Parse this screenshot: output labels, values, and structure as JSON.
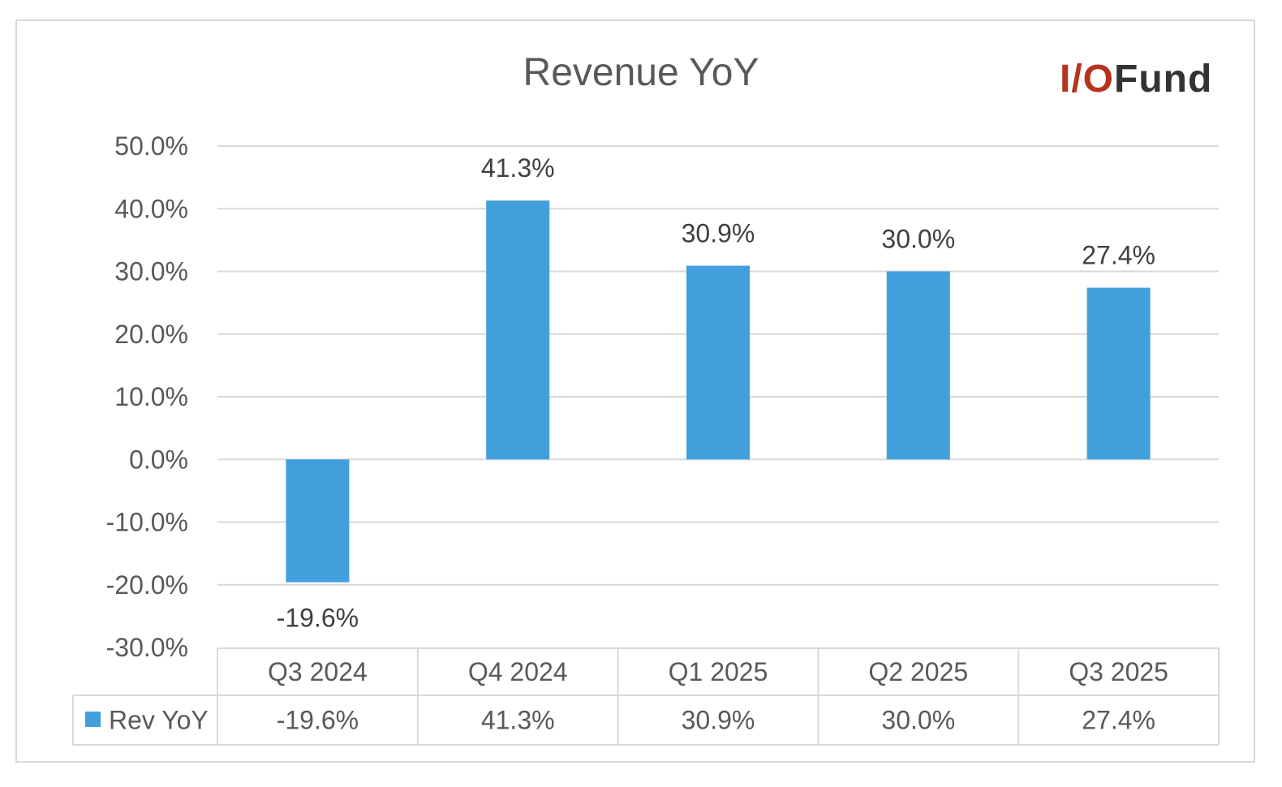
{
  "chart_data": {
    "type": "bar",
    "title": "Revenue YoY",
    "categories": [
      "Q3 2024",
      "Q4 2024",
      "Q1 2025",
      "Q2 2025",
      "Q3 2025"
    ],
    "series": [
      {
        "name": "Rev YoY",
        "values": [
          -19.6,
          41.3,
          30.9,
          30.0,
          27.4
        ],
        "color": "#419fdc"
      }
    ],
    "data_labels": [
      "-19.6%",
      "41.3%",
      "30.9%",
      "30.0%",
      "27.4%"
    ],
    "y_ticks": [
      "50.0%",
      "40.0%",
      "30.0%",
      "20.0%",
      "10.0%",
      "0.0%",
      "-10.0%",
      "-20.0%",
      "-30.0%"
    ],
    "ylim": [
      -30,
      50
    ],
    "grid": true,
    "data_table": true
  },
  "logo": {
    "part1": "I/O",
    "part2": "Fund",
    "color1": "#b5341b",
    "color2": "#333333"
  }
}
